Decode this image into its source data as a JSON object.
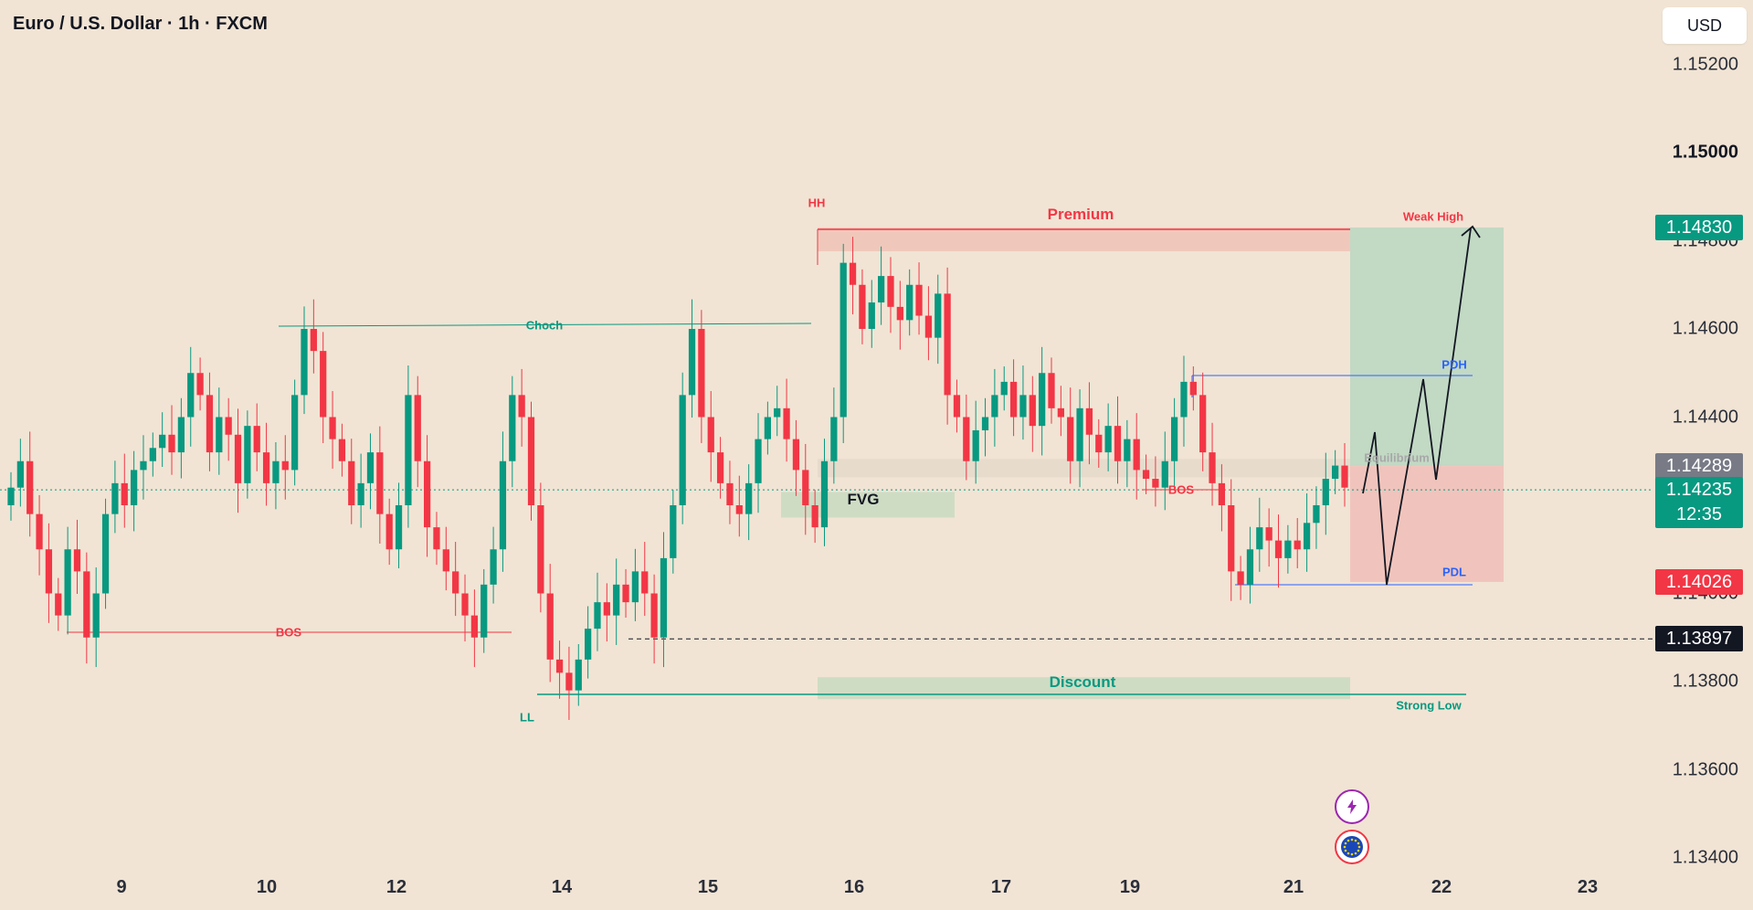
{
  "header": {
    "title": "Euro / U.S. Dollar · 1h · FXCM",
    "currency_button": "USD"
  },
  "colors": {
    "background": "#f1e4d4",
    "bull": "#089981",
    "bear": "#f23645",
    "premium_zone": "#f0c8bb",
    "discount_zone": "#cfdcc4",
    "target_zone": "#c2d9c4",
    "stop_zone": "#f0c4bc",
    "equilibrium_zone": "#e7dbcc",
    "pd_line": "#2962ff"
  },
  "chart_data": {
    "type": "candlestick",
    "symbol": "Euro / U.S. Dollar",
    "timeframe": "1h",
    "source": "FXCM",
    "y_axis": {
      "ticks": [
        "1.15200",
        "1.15000",
        "1.14800",
        "1.14600",
        "1.14400",
        "1.14200",
        "1.14000",
        "1.13800",
        "1.13600",
        "1.13400"
      ],
      "bold_tick": "1.15000",
      "ylim": [
        1.1336,
        1.1532
      ]
    },
    "x_axis": {
      "ticks": [
        "9",
        "10",
        "12",
        "14",
        "15",
        "16",
        "17",
        "19",
        "21",
        "22",
        "23"
      ]
    },
    "price_tags": [
      {
        "label": "1.14830",
        "price": 1.1483,
        "color": "#089981"
      },
      {
        "label": "1.14289",
        "price": 1.14289,
        "color": "#787b86"
      },
      {
        "label": "1.14235",
        "sub": "12:35",
        "price": 1.14235,
        "color": "#089981"
      },
      {
        "label": "1.14026",
        "price": 1.14026,
        "color": "#f23645"
      },
      {
        "label": "1.13897",
        "price": 1.13897,
        "color": "#131722"
      }
    ],
    "series": [
      {
        "name": "EUR/USD",
        "close_path": [
          1.1424,
          1.143,
          1.1418,
          1.141,
          1.14,
          1.1395,
          1.141,
          1.1405,
          1.139,
          1.14,
          1.1418,
          1.1425,
          1.142,
          1.1428,
          1.143,
          1.1433,
          1.1436,
          1.1432,
          1.144,
          1.145,
          1.1445,
          1.1432,
          1.144,
          1.1436,
          1.1425,
          1.1438,
          1.1432,
          1.1425,
          1.143,
          1.1428,
          1.1445,
          1.146,
          1.1455,
          1.144,
          1.1435,
          1.143,
          1.142,
          1.1425,
          1.1432,
          1.1418,
          1.141,
          1.142,
          1.1445,
          1.143,
          1.1415,
          1.141,
          1.1405,
          1.14,
          1.1395,
          1.139,
          1.1402,
          1.141,
          1.143,
          1.1445,
          1.144,
          1.142,
          1.14,
          1.1385,
          1.1382,
          1.1378,
          1.1385,
          1.1392,
          1.1398,
          1.1395,
          1.1402,
          1.1398,
          1.1405,
          1.14,
          1.139,
          1.1408,
          1.142,
          1.1445,
          1.146,
          1.144,
          1.1432,
          1.1425,
          1.142,
          1.1418,
          1.1425,
          1.1435,
          1.144,
          1.1442,
          1.1435,
          1.1428,
          1.142,
          1.1415,
          1.143,
          1.144,
          1.1475,
          1.147,
          1.146,
          1.1466,
          1.1472,
          1.1465,
          1.1462,
          1.147,
          1.1463,
          1.1458,
          1.1468,
          1.1445,
          1.144,
          1.143,
          1.1437,
          1.144,
          1.1445,
          1.1448,
          1.144,
          1.1445,
          1.1438,
          1.145,
          1.1442,
          1.144,
          1.143,
          1.1442,
          1.1436,
          1.1432,
          1.1438,
          1.143,
          1.1435,
          1.1428,
          1.1426,
          1.1424,
          1.143,
          1.144,
          1.1448,
          1.1445,
          1.1432,
          1.1425,
          1.142,
          1.1405,
          1.1402,
          1.141,
          1.1415,
          1.1412,
          1.1408,
          1.1412,
          1.141,
          1.1416,
          1.142,
          1.1426,
          1.1429,
          1.1424
        ]
      }
    ],
    "structure_levels": [
      {
        "label": "Choch",
        "price": 1.1461
      },
      {
        "label": "BOS",
        "price": 1.1392
      },
      {
        "label": "BOS",
        "price": 1.1423
      },
      {
        "label": "Premium",
        "price": 1.1483
      },
      {
        "label": "Discount",
        "price": 1.1378
      },
      {
        "label": "PDH",
        "price": 1.145
      },
      {
        "label": "PDL",
        "price": 1.14026
      },
      {
        "label": "Equilibrium",
        "price": 1.1429
      }
    ],
    "annotations": {
      "hh": "HH",
      "ll": "LL",
      "choch": "Choch",
      "bos_left": "BOS",
      "bos_right": "BOS",
      "premium": "Premium",
      "discount": "Discount",
      "weak_high": "Weak High",
      "strong_low": "Strong Low",
      "fvg": "FVG",
      "pdh": "PDH",
      "pdl": "PDL",
      "equilibrium": "Equilibrium"
    },
    "grid": false,
    "legend": "none"
  },
  "icons": {
    "bolt": "lightning-bolt-icon",
    "flag": "eu-flag-icon"
  }
}
